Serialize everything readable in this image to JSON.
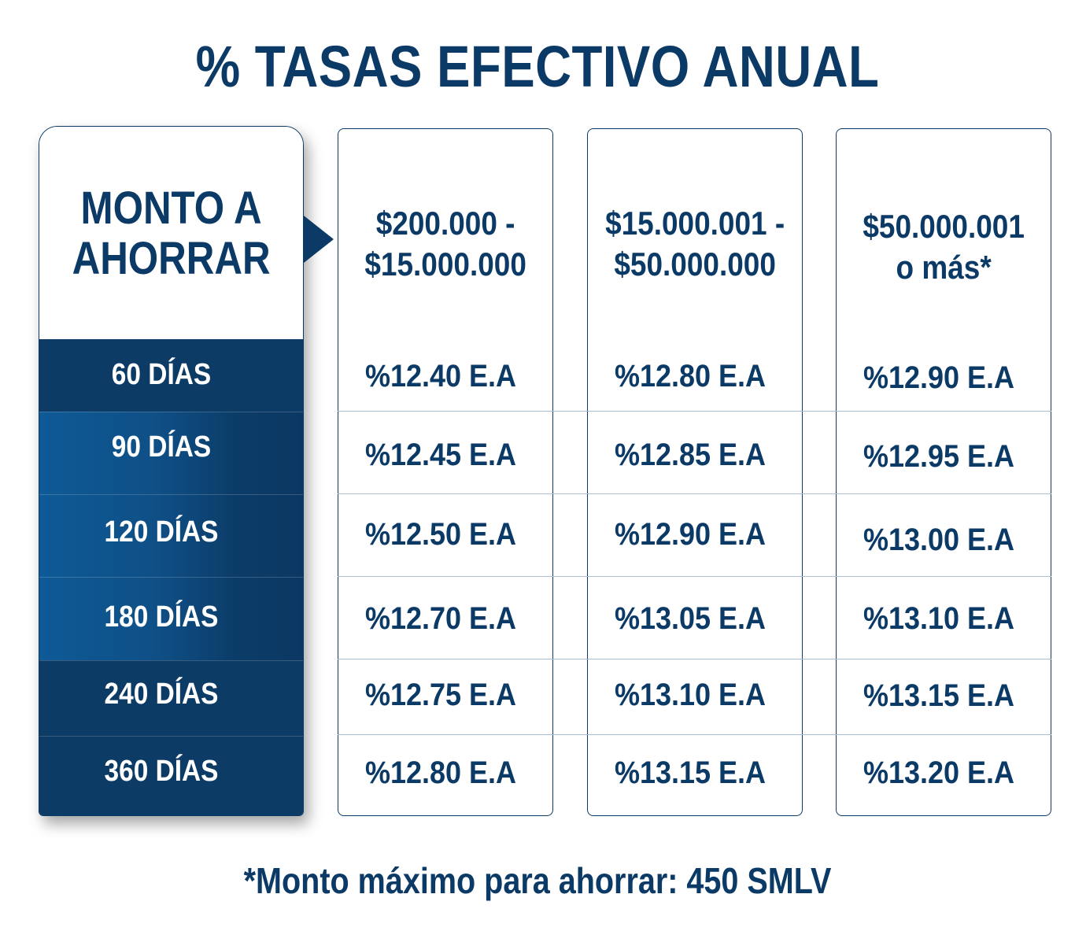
{
  "title": "% TASAS EFECTIVO ANUAL",
  "row_header": {
    "line1": "MONTO A",
    "line2": "AHORRAR"
  },
  "columns": [
    {
      "line1": "$200.000 -",
      "line2": "$15.000.000"
    },
    {
      "line1": "$15.000.001 -",
      "line2": "$50.000.000"
    },
    {
      "line1": "$50.000.001",
      "line2": "o más*"
    }
  ],
  "rows": [
    {
      "term": "60 DÍAS",
      "rates": [
        "%12.40 E.A",
        "%12.80 E.A",
        "%12.90 E.A"
      ]
    },
    {
      "term": "90 DÍAS",
      "rates": [
        "%12.45 E.A",
        "%12.85 E.A",
        "%12.95 E.A"
      ]
    },
    {
      "term": "120 DÍAS",
      "rates": [
        "%12.50 E.A",
        "%12.90 E.A",
        "%13.00 E.A"
      ]
    },
    {
      "term": "180 DÍAS",
      "rates": [
        "%12.70 E.A",
        "%13.05 E.A",
        "%13.10 E.A"
      ]
    },
    {
      "term": "240 DÍAS",
      "rates": [
        "%12.75 E.A",
        "%13.10 E.A",
        "%13.15 E.A"
      ]
    },
    {
      "term": "360 DÍAS",
      "rates": [
        "%12.80 E.A",
        "%13.15 E.A",
        "%13.20 E.A"
      ]
    }
  ],
  "footnote": "*Monto máximo para ahorrar: 450 SMLV",
  "colors": {
    "navy": "#0c3a66",
    "blue": "#0e5a96",
    "line": "#a9bfd1"
  }
}
